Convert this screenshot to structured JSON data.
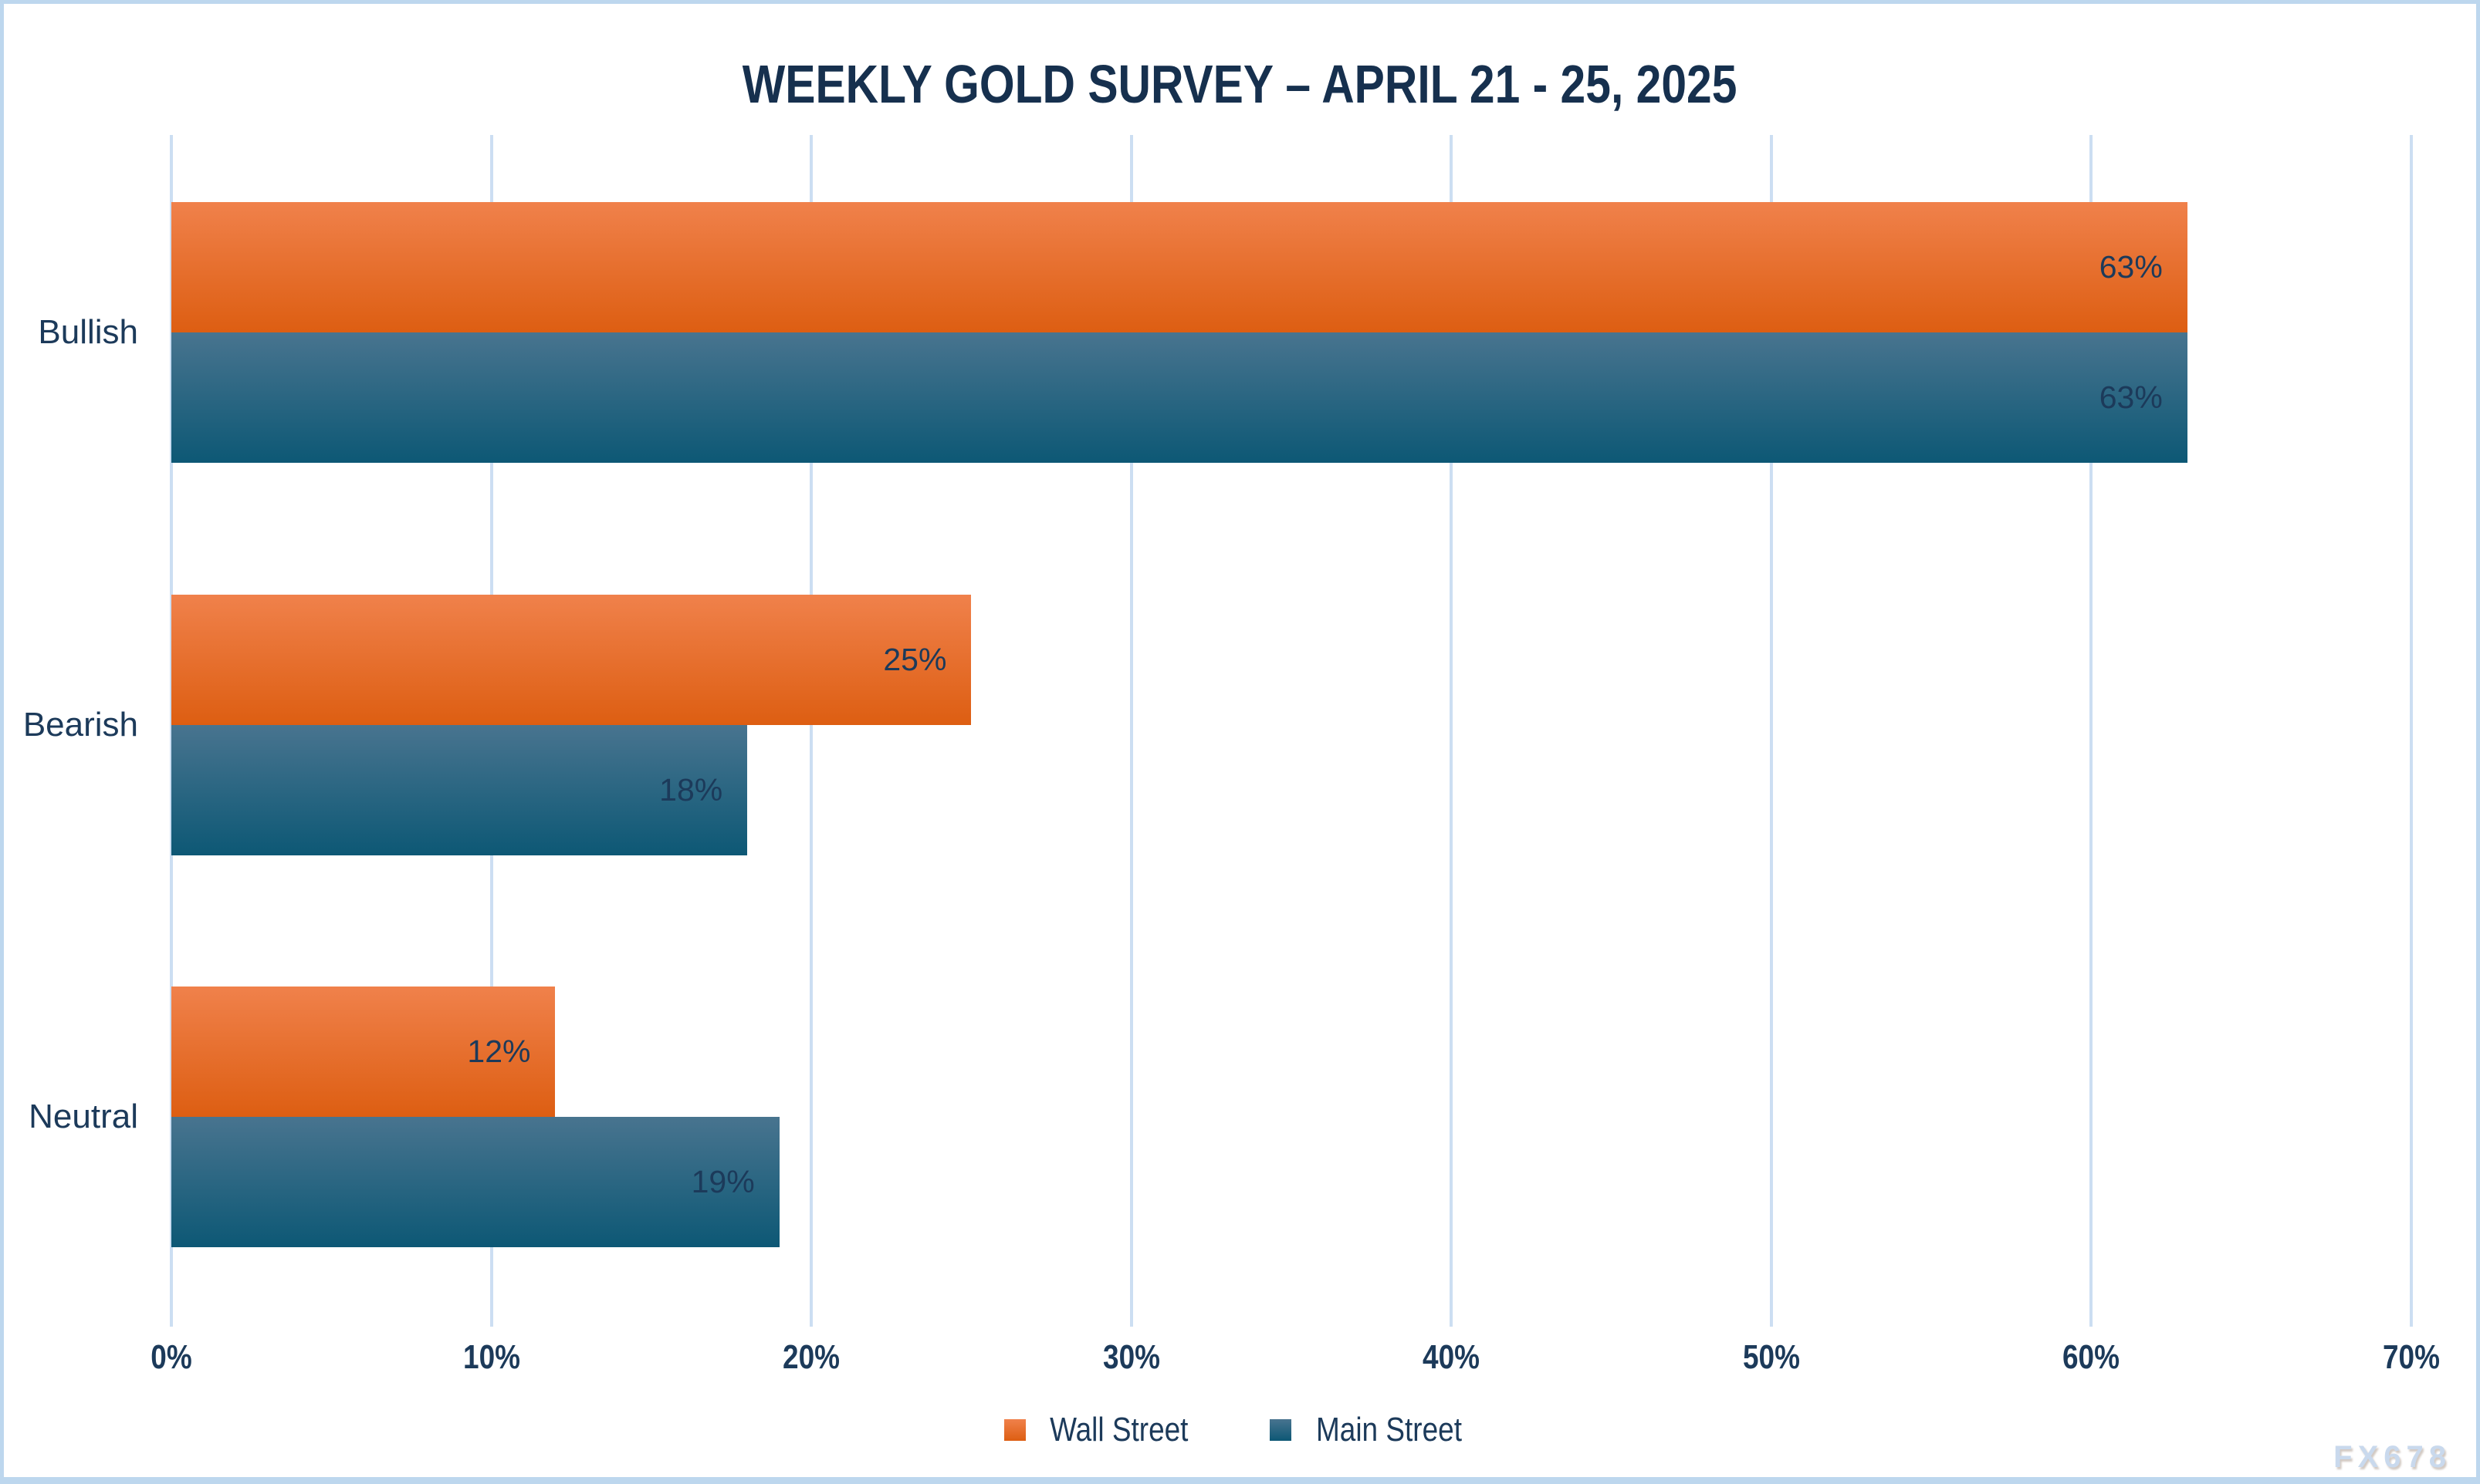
{
  "title": "WEEKLY GOLD SURVEY – APRIL 21 - 25, 2025",
  "watermark": "FX678",
  "chart_data": {
    "type": "bar",
    "orientation": "horizontal",
    "title": "WEEKLY GOLD SURVEY – APRIL 21 - 25, 2025",
    "categories": [
      "Bullish",
      "Bearish",
      "Neutral"
    ],
    "series": [
      {
        "name": "Wall Street",
        "values": [
          63,
          25,
          12
        ],
        "color_top": "#F0814B",
        "color_bottom": "#DD5E12"
      },
      {
        "name": "Main Street",
        "values": [
          63,
          18,
          19
        ],
        "color_top": "#48748F",
        "color_bottom": "#0D5875"
      }
    ],
    "value_suffix": "%",
    "xlim": [
      0,
      70
    ],
    "x_tick_labels": [
      "0%",
      "10%",
      "20%",
      "30%",
      "40%",
      "50%",
      "60%",
      "70%"
    ],
    "grid": "vertical-only",
    "legend_position": "bottom-center",
    "data_labels": "inside-end"
  },
  "colors": {
    "background": "#FFFFFF",
    "frame_border": "#BDD7EE",
    "grid": "#CCDEF2",
    "title_text": "#16304E",
    "text": "#1C3A5A",
    "watermark": "#C9D9ED"
  }
}
